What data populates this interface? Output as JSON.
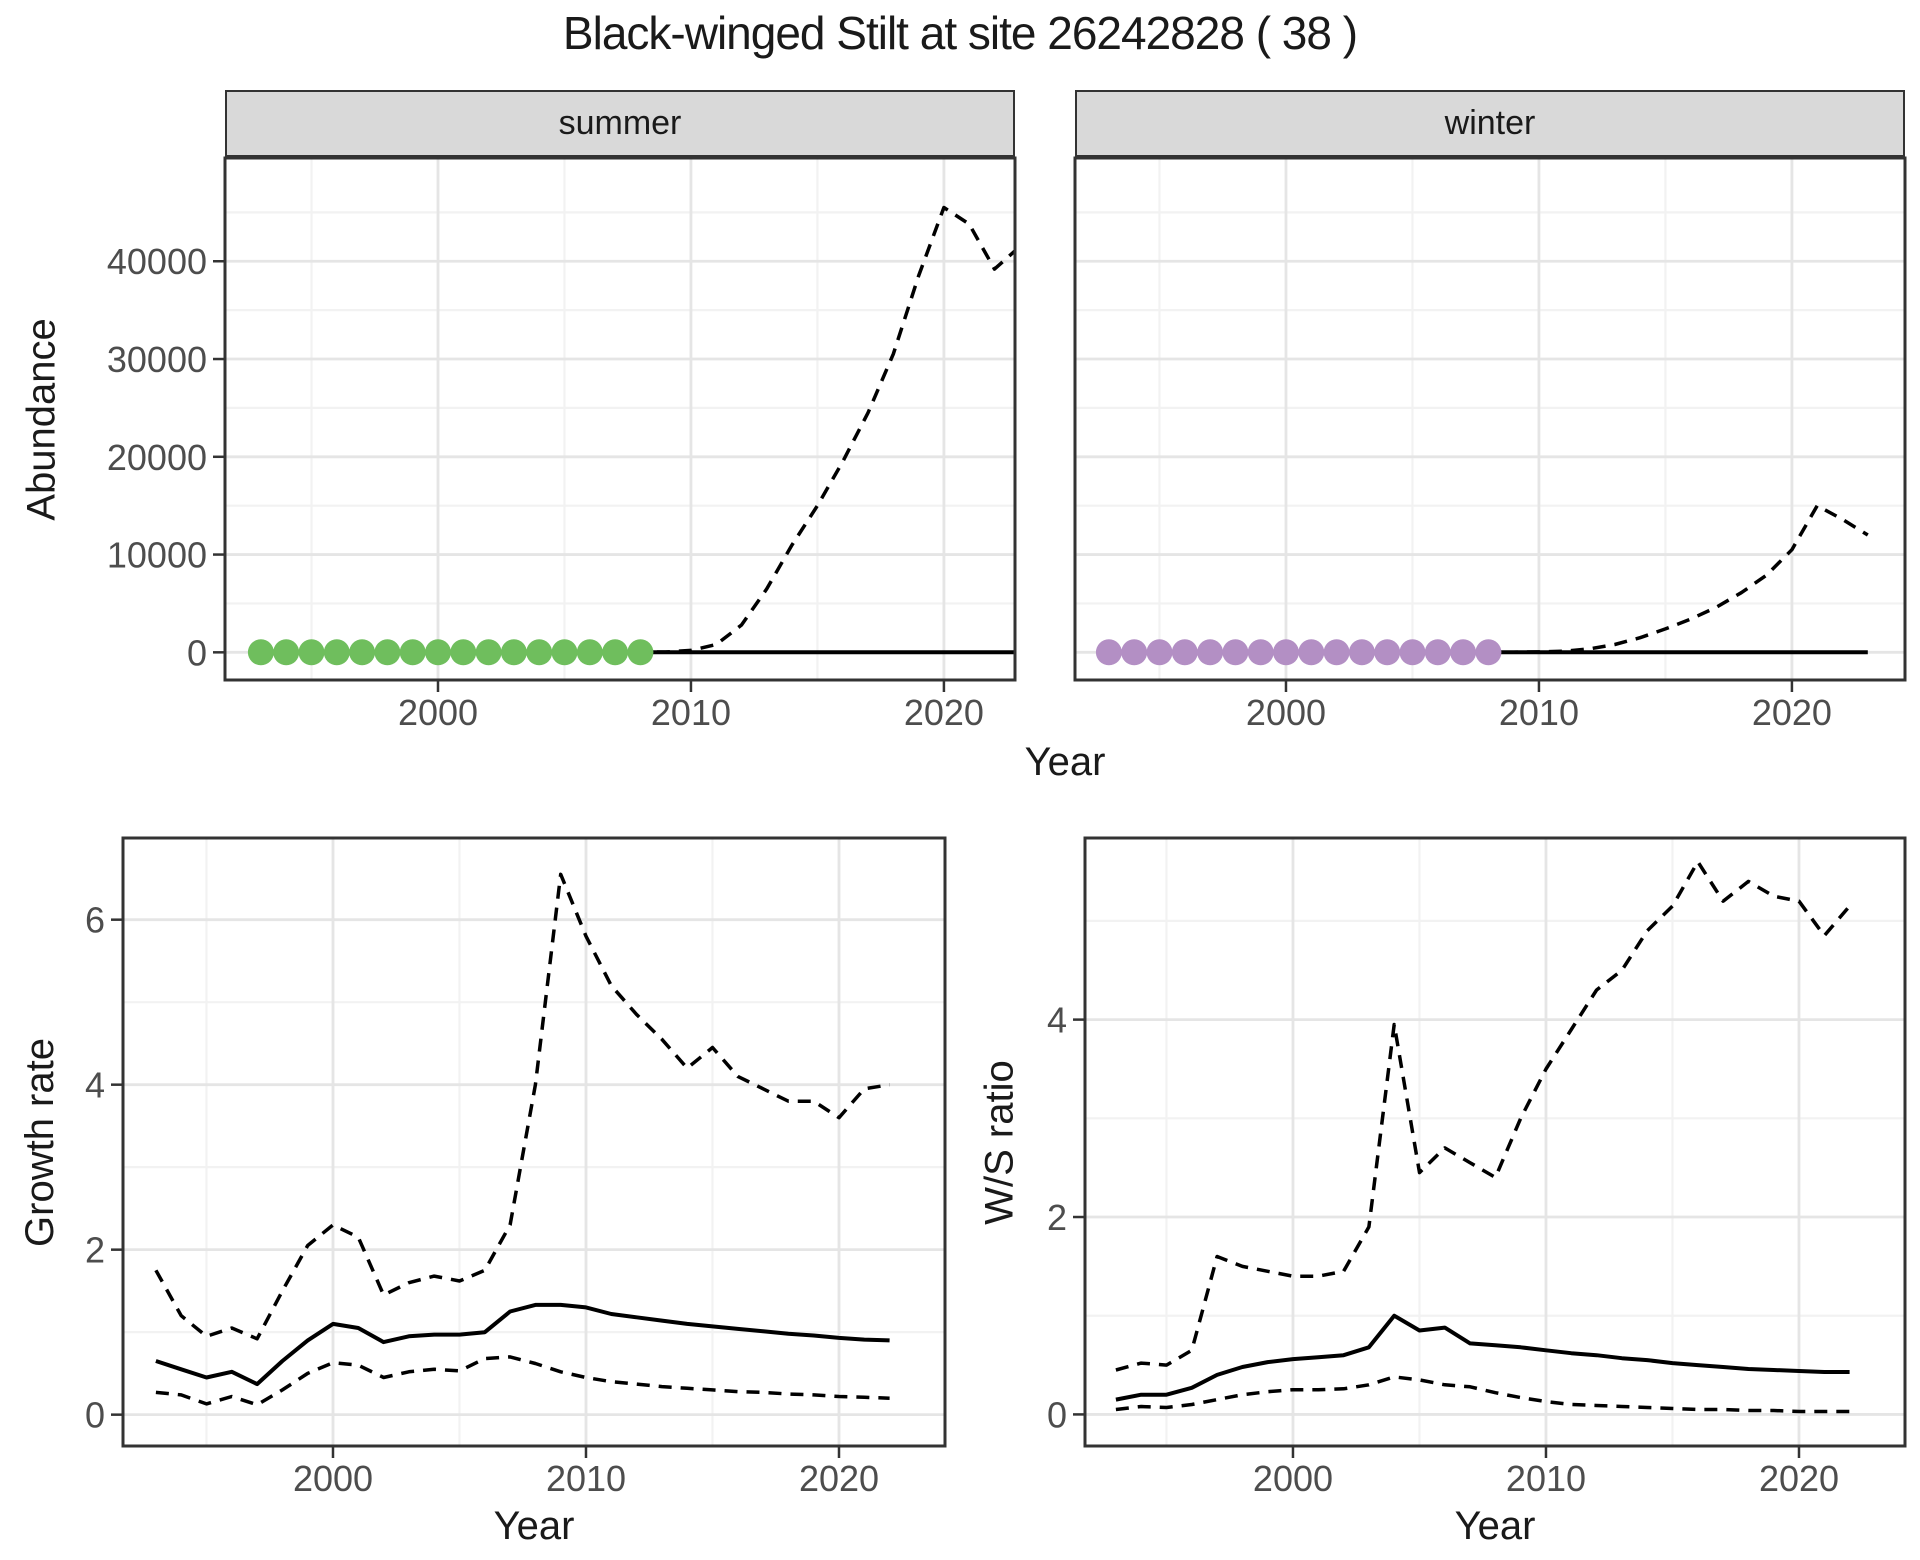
{
  "title": "Black-winged Stilt at site 26242828 ( 38 )",
  "axis_labels": {
    "abundance": "Abundance",
    "year": "Year",
    "growth_rate": "Growth rate",
    "ws_ratio": "W/S ratio"
  },
  "facets": {
    "summer": "summer",
    "winter": "winter"
  },
  "colors": {
    "summer_points": "#6FBE5D",
    "winter_points": "#B38FC4",
    "line": "#000000",
    "grid_major": "#E5E5E5",
    "grid_minor": "#F2F2F2",
    "strip_fill": "#D9D9D9",
    "panel_border": "#333333",
    "tick_mark": "#333333",
    "tick_text": "#4D4D4D",
    "title_text": "#1A1A1A"
  },
  "chart_data": [
    {
      "id": "abundance-summer",
      "type": "line",
      "facet_label": "summer",
      "xlabel": "Year",
      "ylabel": "Abundance",
      "xlim": [
        1991.58,
        2022.81
      ],
      "ylim": [
        -2830,
        50560
      ],
      "xticks": [
        2000,
        2010,
        2020
      ],
      "xminor": [
        1995,
        2005,
        2015
      ],
      "yticks": [
        0,
        10000,
        20000,
        30000,
        40000
      ],
      "yminor": [
        5000,
        15000,
        25000,
        35000,
        45000
      ],
      "legend": "off",
      "grid": "on",
      "x": [
        1993,
        1994,
        1995,
        1996,
        1997,
        1998,
        1999,
        2000,
        2001,
        2002,
        2003,
        2004,
        2005,
        2006,
        2007,
        2008,
        2009,
        2010,
        2011,
        2012,
        2013,
        2014,
        2015,
        2016,
        2017,
        2018,
        2019,
        2020,
        2021,
        2022,
        2023
      ],
      "series": [
        {
          "name": "upper_ci",
          "style": "dashed",
          "values": [
            20,
            20,
            20,
            20,
            20,
            20,
            20,
            20,
            20,
            20,
            20,
            20,
            20,
            20,
            20,
            20,
            30,
            200,
            800,
            2800,
            6500,
            11000,
            15000,
            19500,
            24500,
            30500,
            38500,
            45500,
            43800,
            39200,
            41500
          ]
        },
        {
          "name": "fitted",
          "style": "solid",
          "values": [
            5,
            5,
            5,
            5,
            5,
            5,
            5,
            5,
            5,
            5,
            5,
            5,
            5,
            5,
            5,
            5,
            5,
            5,
            5,
            5,
            5,
            5,
            5,
            5,
            5,
            5,
            5,
            5,
            5,
            5,
            5
          ]
        }
      ],
      "points": {
        "name": "observed-counts",
        "color_key": "summer_points",
        "x": [
          1993,
          1994,
          1995,
          1996,
          1997,
          1998,
          1999,
          2000,
          2001,
          2002,
          2003,
          2004,
          2005,
          2006,
          2007,
          2008
        ],
        "y": [
          0,
          0,
          0,
          0,
          0,
          0,
          0,
          0,
          0,
          0,
          0,
          0,
          0,
          0,
          0,
          0
        ]
      }
    },
    {
      "id": "abundance-winter",
      "type": "line",
      "facet_label": "winter",
      "xlabel": "Year",
      "ylabel": "",
      "xlim": [
        1991.66,
        2024.47
      ],
      "ylim": [
        -2830,
        50560
      ],
      "xticks": [
        2000,
        2010,
        2020
      ],
      "xminor": [
        1995,
        2005,
        2015
      ],
      "yticks": [
        0,
        10000,
        20000,
        30000,
        40000
      ],
      "yminor": [
        5000,
        15000,
        25000,
        35000,
        45000
      ],
      "legend": "off",
      "grid": "on",
      "x": [
        1993,
        1994,
        1995,
        1996,
        1997,
        1998,
        1999,
        2000,
        2001,
        2002,
        2003,
        2004,
        2005,
        2006,
        2007,
        2008,
        2009,
        2010,
        2011,
        2012,
        2013,
        2014,
        2015,
        2016,
        2017,
        2018,
        2019,
        2020,
        2021,
        2022,
        2023
      ],
      "series": [
        {
          "name": "upper_ci",
          "style": "dashed",
          "values": [
            10,
            10,
            10,
            10,
            10,
            10,
            10,
            10,
            10,
            10,
            10,
            10,
            10,
            10,
            10,
            10,
            15,
            40,
            120,
            350,
            800,
            1500,
            2400,
            3400,
            4600,
            6100,
            7900,
            10500,
            15000,
            13600,
            12000
          ]
        },
        {
          "name": "fitted",
          "style": "solid",
          "values": [
            3,
            3,
            3,
            3,
            3,
            3,
            3,
            3,
            3,
            3,
            3,
            3,
            3,
            3,
            3,
            3,
            3,
            3,
            3,
            3,
            3,
            3,
            3,
            3,
            3,
            3,
            3,
            3,
            3,
            3,
            3
          ]
        }
      ],
      "points": {
        "name": "observed-counts",
        "color_key": "winter_points",
        "x": [
          1993,
          1994,
          1995,
          1996,
          1997,
          1998,
          1999,
          2000,
          2001,
          2002,
          2003,
          2004,
          2005,
          2006,
          2007,
          2008
        ],
        "y": [
          0,
          0,
          0,
          0,
          0,
          0,
          0,
          0,
          0,
          0,
          0,
          0,
          0,
          0,
          0,
          0
        ]
      }
    },
    {
      "id": "growth-rate",
      "type": "line",
      "facet_label": "",
      "xlabel": "Year",
      "ylabel": "Growth rate",
      "xlim": [
        1991.7,
        2024.19
      ],
      "ylim": [
        -0.38,
        6.99
      ],
      "xticks": [
        2000,
        2010,
        2020
      ],
      "xminor": [
        1995,
        2005,
        2015
      ],
      "yticks": [
        0,
        2,
        4,
        6
      ],
      "yminor": [
        1,
        3,
        5
      ],
      "legend": "off",
      "grid": "on",
      "x": [
        1993,
        1994,
        1995,
        1996,
        1997,
        1998,
        1999,
        2000,
        2001,
        2002,
        2003,
        2004,
        2005,
        2006,
        2007,
        2008,
        2009,
        2010,
        2011,
        2012,
        2013,
        2014,
        2015,
        2016,
        2017,
        2018,
        2019,
        2020,
        2021,
        2022
      ],
      "series": [
        {
          "name": "upper_ci",
          "style": "dashed",
          "values": [
            1.75,
            1.2,
            0.95,
            1.05,
            0.92,
            1.5,
            2.05,
            2.3,
            2.15,
            1.45,
            1.6,
            1.68,
            1.62,
            1.75,
            2.3,
            4.0,
            6.55,
            5.8,
            5.2,
            4.85,
            4.55,
            4.2,
            4.45,
            4.1,
            3.95,
            3.8,
            3.8,
            3.6,
            3.95,
            4.0
          ]
        },
        {
          "name": "lower_ci",
          "style": "dashed",
          "values": [
            0.27,
            0.24,
            0.13,
            0.22,
            0.12,
            0.3,
            0.5,
            0.63,
            0.6,
            0.45,
            0.52,
            0.55,
            0.53,
            0.68,
            0.7,
            0.62,
            0.52,
            0.45,
            0.4,
            0.37,
            0.34,
            0.32,
            0.3,
            0.28,
            0.27,
            0.25,
            0.24,
            0.22,
            0.21,
            0.2
          ]
        },
        {
          "name": "estimate",
          "style": "solid",
          "values": [
            0.65,
            0.55,
            0.45,
            0.52,
            0.37,
            0.65,
            0.9,
            1.1,
            1.05,
            0.88,
            0.95,
            0.97,
            0.97,
            1.0,
            1.25,
            1.33,
            1.33,
            1.3,
            1.22,
            1.18,
            1.14,
            1.1,
            1.07,
            1.04,
            1.01,
            0.98,
            0.96,
            0.93,
            0.91,
            0.9
          ]
        }
      ]
    },
    {
      "id": "ws-ratio",
      "type": "line",
      "facet_label": "",
      "xlabel": "Year",
      "ylabel": "W/S ratio",
      "xlim": [
        1991.78,
        2024.19
      ],
      "ylim": [
        -0.32,
        5.84
      ],
      "xticks": [
        2000,
        2010,
        2020
      ],
      "xminor": [
        1995,
        2005,
        2015
      ],
      "yticks": [
        0,
        2,
        4
      ],
      "yminor": [
        1,
        3,
        5
      ],
      "legend": "off",
      "grid": "on",
      "x": [
        1993,
        1994,
        1995,
        1996,
        1997,
        1998,
        1999,
        2000,
        2001,
        2002,
        2003,
        2004,
        2005,
        2006,
        2007,
        2008,
        2009,
        2010,
        2011,
        2012,
        2013,
        2014,
        2015,
        2016,
        2017,
        2018,
        2019,
        2020,
        2021,
        2022
      ],
      "series": [
        {
          "name": "upper_ci",
          "style": "dashed",
          "values": [
            0.45,
            0.52,
            0.5,
            0.65,
            1.6,
            1.5,
            1.45,
            1.4,
            1.4,
            1.45,
            1.9,
            3.95,
            2.45,
            2.7,
            2.55,
            2.4,
            3.0,
            3.5,
            3.9,
            4.3,
            4.5,
            4.9,
            5.15,
            5.6,
            5.2,
            5.4,
            5.25,
            5.2,
            4.85,
            5.15
          ]
        },
        {
          "name": "lower_ci",
          "style": "dashed",
          "values": [
            0.05,
            0.08,
            0.07,
            0.1,
            0.15,
            0.2,
            0.23,
            0.25,
            0.25,
            0.26,
            0.3,
            0.38,
            0.35,
            0.3,
            0.28,
            0.22,
            0.17,
            0.13,
            0.1,
            0.09,
            0.08,
            0.07,
            0.06,
            0.05,
            0.05,
            0.04,
            0.04,
            0.03,
            0.03,
            0.03
          ]
        },
        {
          "name": "estimate",
          "style": "solid",
          "values": [
            0.15,
            0.2,
            0.2,
            0.27,
            0.4,
            0.48,
            0.53,
            0.56,
            0.58,
            0.6,
            0.68,
            1.0,
            0.85,
            0.88,
            0.72,
            0.7,
            0.68,
            0.65,
            0.62,
            0.6,
            0.57,
            0.55,
            0.52,
            0.5,
            0.48,
            0.46,
            0.45,
            0.44,
            0.43,
            0.43
          ]
        }
      ]
    }
  ]
}
